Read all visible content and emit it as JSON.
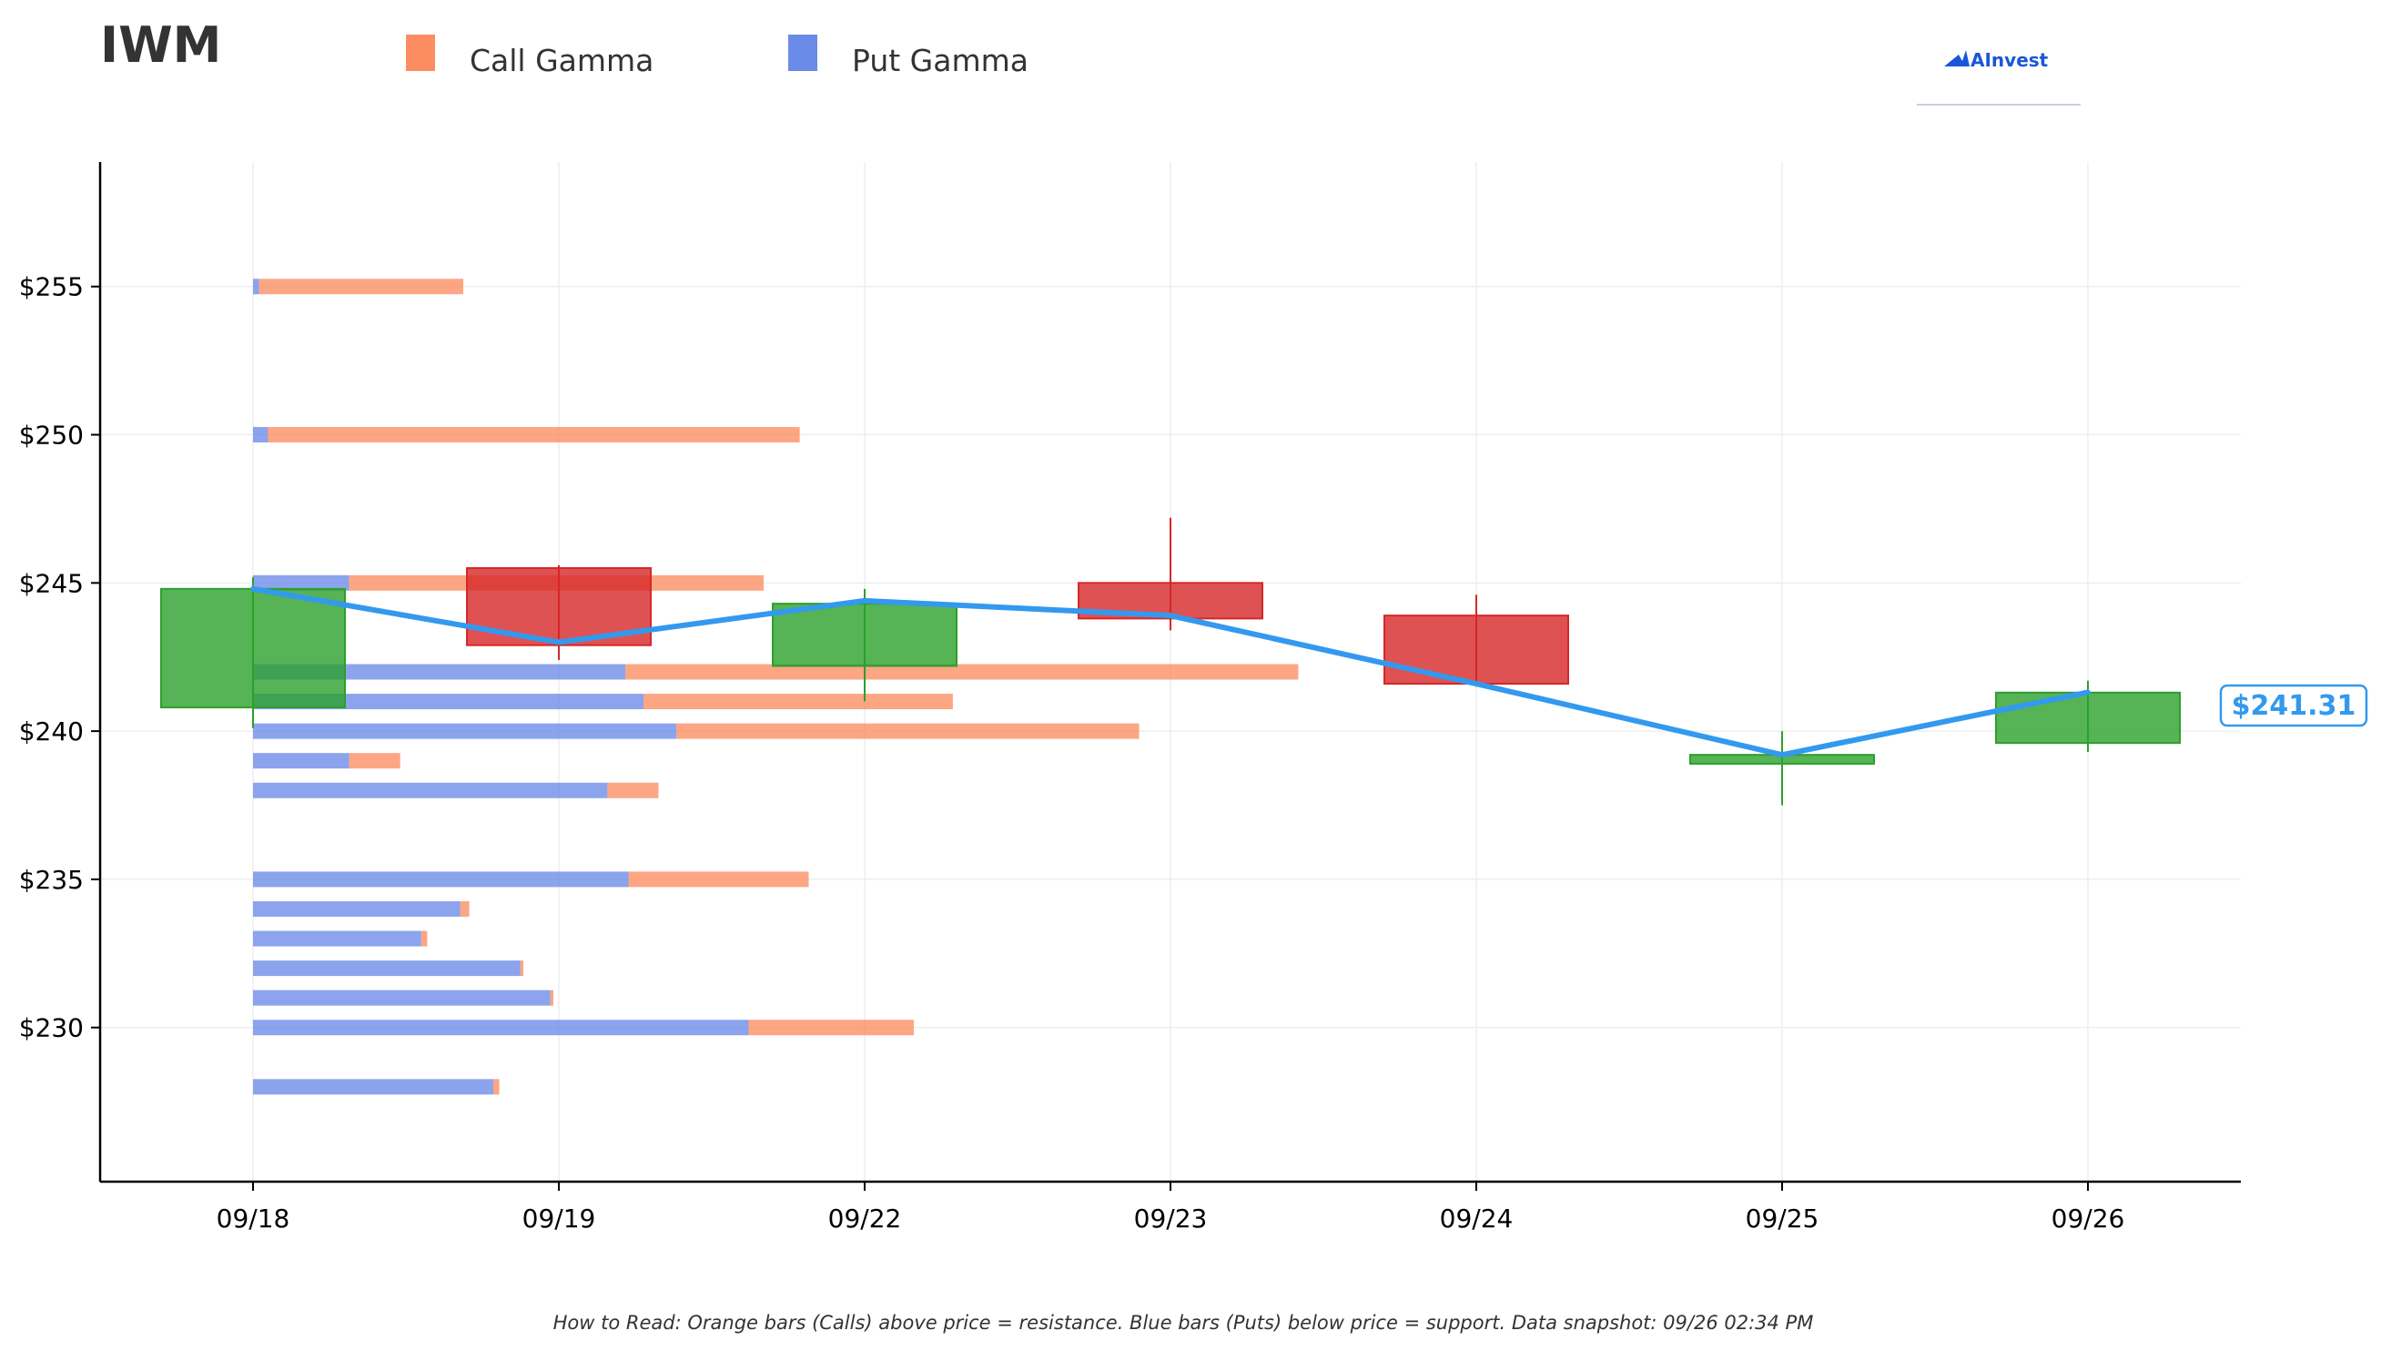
{
  "header": {
    "ticker": "IWM",
    "brand": "AInvest"
  },
  "legend": [
    {
      "label": "Call Gamma",
      "color": "#fc8d62"
    },
    {
      "label": "Put Gamma",
      "color": "#6b8be8"
    }
  ],
  "footer_note": "How to Read: Orange bars (Calls) above price = resistance. Blue bars (Puts) below price = support. Data snapshot: 09/26 02:34 PM",
  "current_price_label": "$241.31",
  "colors": {
    "call": "#fc8d62",
    "put": "#6b8be8",
    "up": "#2ca02c",
    "down": "#d62728",
    "price_line": "#3399ee",
    "axis": "#000000",
    "grid": "#eeeeee"
  },
  "chart_data": {
    "type": "candlestick",
    "categories": [
      "09/18",
      "09/19",
      "09/22",
      "09/23",
      "09/24",
      "09/25",
      "09/26"
    ],
    "ylim": [
      224.8,
      259.2
    ],
    "yticks": [
      230,
      235,
      240,
      245,
      250,
      255
    ],
    "ytick_labels": [
      "$230",
      "$235",
      "$240",
      "$245",
      "$250",
      "$255"
    ],
    "grid": true,
    "candles": [
      {
        "date": "09/18",
        "open": 240.8,
        "high": 245.2,
        "low": 240.1,
        "close": 244.8
      },
      {
        "date": "09/19",
        "open": 245.5,
        "high": 245.6,
        "low": 242.4,
        "close": 242.9
      },
      {
        "date": "09/22",
        "open": 242.2,
        "high": 244.8,
        "low": 241.0,
        "close": 244.3
      },
      {
        "date": "09/23",
        "open": 245.0,
        "high": 247.2,
        "low": 243.4,
        "close": 243.8
      },
      {
        "date": "09/24",
        "open": 243.9,
        "high": 244.6,
        "low": 241.5,
        "close": 241.6
      },
      {
        "date": "09/25",
        "open": 238.9,
        "high": 240.0,
        "low": 237.5,
        "close": 239.2
      },
      {
        "date": "09/26",
        "open": 239.6,
        "high": 241.7,
        "low": 239.3,
        "close": 241.3
      }
    ],
    "close_line": [
      244.8,
      243.0,
      244.4,
      243.9,
      241.6,
      239.2,
      241.31
    ],
    "gamma_strikes": [
      {
        "strike": 255,
        "put": 0.2,
        "call": 6.8
      },
      {
        "strike": 250,
        "put": 0.5,
        "call": 17.7
      },
      {
        "strike": 245,
        "put": 3.2,
        "call": 13.8
      },
      {
        "strike": 242,
        "put": 12.4,
        "call": 22.4
      },
      {
        "strike": 241,
        "put": 13.0,
        "call": 10.3
      },
      {
        "strike": 240,
        "put": 14.1,
        "call": 15.4
      },
      {
        "strike": 239,
        "put": 3.2,
        "call": 1.7
      },
      {
        "strike": 238,
        "put": 11.8,
        "call": 1.7
      },
      {
        "strike": 235,
        "put": 12.5,
        "call": 6.0
      },
      {
        "strike": 234,
        "put": 6.9,
        "call": 0.3
      },
      {
        "strike": 233,
        "put": 5.6,
        "call": 0.2
      },
      {
        "strike": 232,
        "put": 8.9,
        "call": 0.1
      },
      {
        "strike": 231,
        "put": 9.9,
        "call": 0.1
      },
      {
        "strike": 230,
        "put": 16.5,
        "call": 5.5
      },
      {
        "strike": 228,
        "put": 8.0,
        "call": 0.2
      }
    ]
  }
}
